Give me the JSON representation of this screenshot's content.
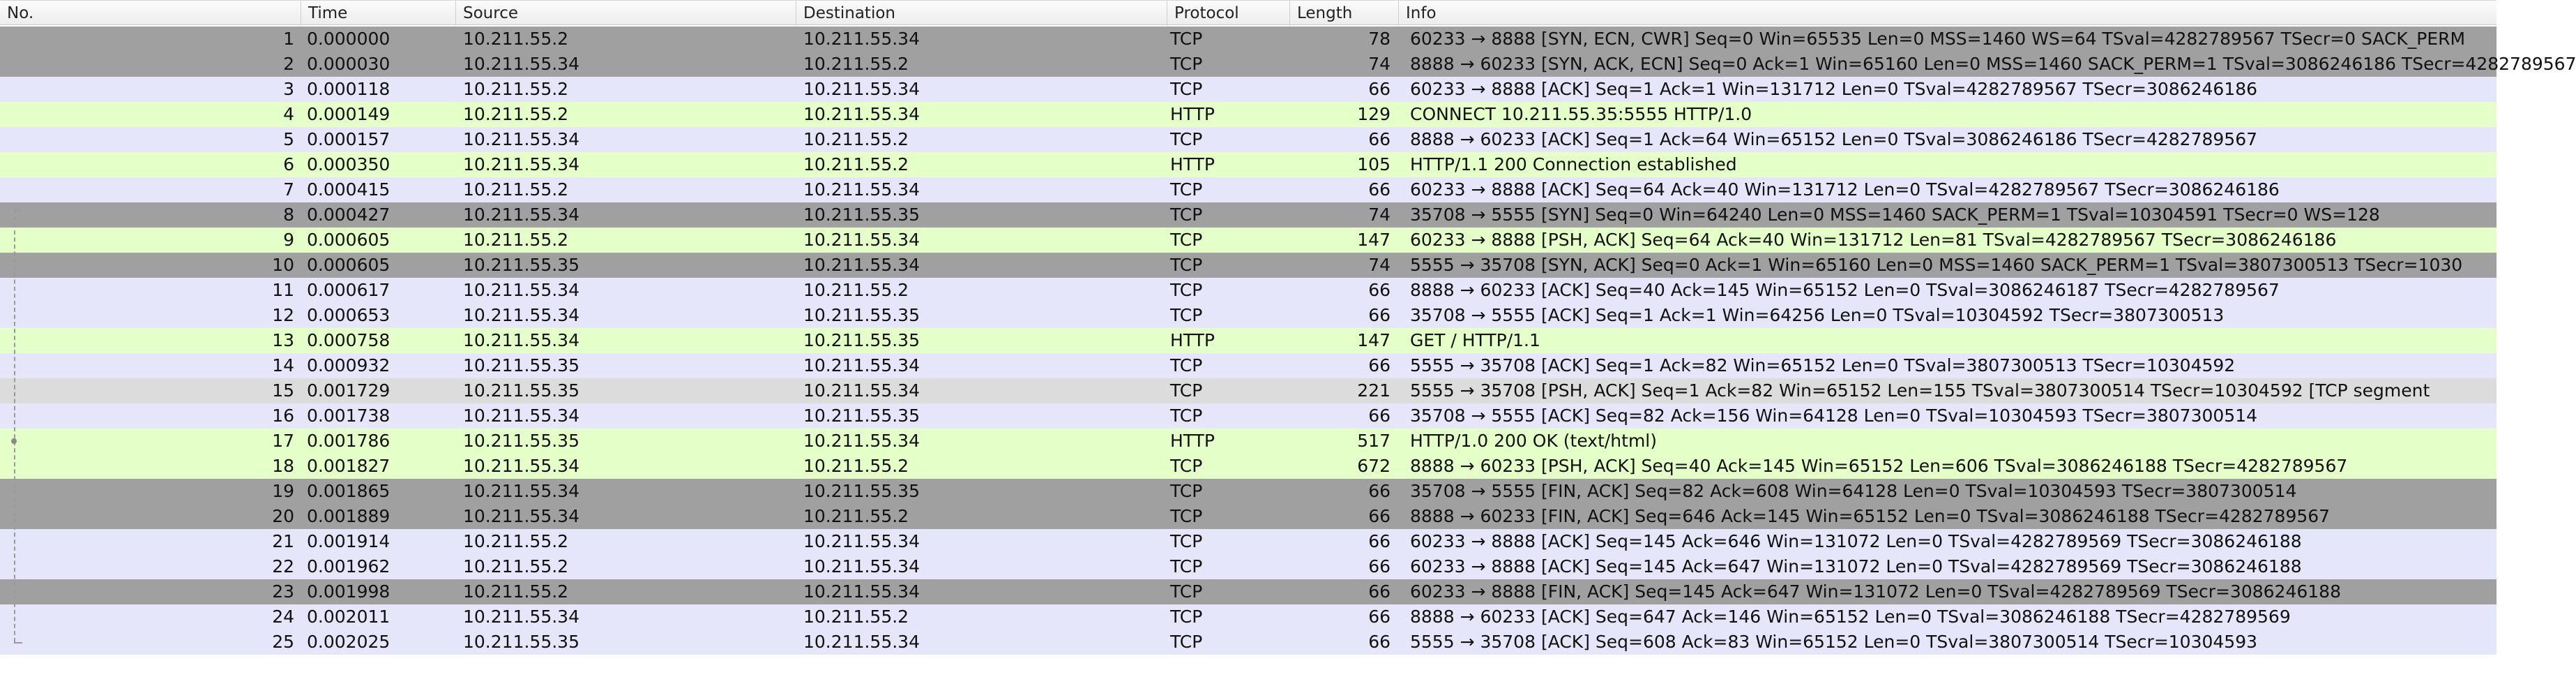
{
  "columns": {
    "no": "No.",
    "time": "Time",
    "source": "Source",
    "destination": "Destination",
    "protocol": "Protocol",
    "length": "Length",
    "info": "Info"
  },
  "colors": {
    "tcp_light": "#e6e6fa",
    "http_green": "#e4ffc7",
    "flag_gray": "#a0a0a0",
    "segment_gray": "#dcdcdc"
  },
  "packets": [
    {
      "no": "1",
      "time": "0.000000",
      "source": "10.211.55.2",
      "destination": "10.211.55.34",
      "protocol": "TCP",
      "length": "78",
      "info": "60233 → 8888 [SYN, ECN, CWR] Seq=0 Win=65535 Len=0 MSS=1460 WS=64 TSval=4282789567 TSecr=0 SACK_PERM",
      "style": "flag_gray"
    },
    {
      "no": "2",
      "time": "0.000030",
      "source": "10.211.55.34",
      "destination": "10.211.55.2",
      "protocol": "TCP",
      "length": "74",
      "info": "8888 → 60233 [SYN, ACK, ECN] Seq=0 Ack=1 Win=65160 Len=0 MSS=1460 SACK_PERM=1 TSval=3086246186 TSecr=4282789567",
      "style": "flag_gray"
    },
    {
      "no": "3",
      "time": "0.000118",
      "source": "10.211.55.2",
      "destination": "10.211.55.34",
      "protocol": "TCP",
      "length": "66",
      "info": "60233 → 8888 [ACK] Seq=1 Ack=1 Win=131712 Len=0 TSval=4282789567 TSecr=3086246186",
      "style": "tcp_light"
    },
    {
      "no": "4",
      "time": "0.000149",
      "source": "10.211.55.2",
      "destination": "10.211.55.34",
      "protocol": "HTTP",
      "length": "129",
      "info": "CONNECT 10.211.55.35:5555 HTTP/1.0",
      "style": "http_green"
    },
    {
      "no": "5",
      "time": "0.000157",
      "source": "10.211.55.34",
      "destination": "10.211.55.2",
      "protocol": "TCP",
      "length": "66",
      "info": "8888 → 60233 [ACK] Seq=1 Ack=64 Win=65152 Len=0 TSval=3086246186 TSecr=4282789567",
      "style": "tcp_light"
    },
    {
      "no": "6",
      "time": "0.000350",
      "source": "10.211.55.34",
      "destination": "10.211.55.2",
      "protocol": "HTTP",
      "length": "105",
      "info": "HTTP/1.1 200 Connection established",
      "style": "http_green"
    },
    {
      "no": "7",
      "time": "0.000415",
      "source": "10.211.55.2",
      "destination": "10.211.55.34",
      "protocol": "TCP",
      "length": "66",
      "info": "60233 → 8888 [ACK] Seq=64 Ack=40 Win=131712 Len=0 TSval=4282789567 TSecr=3086246186",
      "style": "tcp_light"
    },
    {
      "no": "8",
      "time": "0.000427",
      "source": "10.211.55.34",
      "destination": "10.211.55.35",
      "protocol": "TCP",
      "length": "74",
      "info": "35708 → 5555 [SYN] Seq=0 Win=64240 Len=0 MSS=1460 SACK_PERM=1 TSval=10304591 TSecr=0 WS=128",
      "style": "flag_gray"
    },
    {
      "no": "9",
      "time": "0.000605",
      "source": "10.211.55.2",
      "destination": "10.211.55.34",
      "protocol": "TCP",
      "length": "147",
      "info": "60233 → 8888 [PSH, ACK] Seq=64 Ack=40 Win=131712 Len=81 TSval=4282789567 TSecr=3086246186",
      "style": "http_green"
    },
    {
      "no": "10",
      "time": "0.000605",
      "source": "10.211.55.35",
      "destination": "10.211.55.34",
      "protocol": "TCP",
      "length": "74",
      "info": "5555 → 35708 [SYN, ACK] Seq=0 Ack=1 Win=65160 Len=0 MSS=1460 SACK_PERM=1 TSval=3807300513 TSecr=1030",
      "style": "flag_gray"
    },
    {
      "no": "11",
      "time": "0.000617",
      "source": "10.211.55.34",
      "destination": "10.211.55.2",
      "protocol": "TCP",
      "length": "66",
      "info": "8888 → 60233 [ACK] Seq=40 Ack=145 Win=65152 Len=0 TSval=3086246187 TSecr=4282789567",
      "style": "tcp_light"
    },
    {
      "no": "12",
      "time": "0.000653",
      "source": "10.211.55.34",
      "destination": "10.211.55.35",
      "protocol": "TCP",
      "length": "66",
      "info": "35708 → 5555 [ACK] Seq=1 Ack=1 Win=64256 Len=0 TSval=10304592 TSecr=3807300513",
      "style": "tcp_light"
    },
    {
      "no": "13",
      "time": "0.000758",
      "source": "10.211.55.34",
      "destination": "10.211.55.35",
      "protocol": "HTTP",
      "length": "147",
      "info": "GET / HTTP/1.1",
      "style": "http_green"
    },
    {
      "no": "14",
      "time": "0.000932",
      "source": "10.211.55.35",
      "destination": "10.211.55.34",
      "protocol": "TCP",
      "length": "66",
      "info": "5555 → 35708 [ACK] Seq=1 Ack=82 Win=65152 Len=0 TSval=3807300513 TSecr=10304592",
      "style": "tcp_light"
    },
    {
      "no": "15",
      "time": "0.001729",
      "source": "10.211.55.35",
      "destination": "10.211.55.34",
      "protocol": "TCP",
      "length": "221",
      "info": "5555 → 35708 [PSH, ACK] Seq=1 Ack=82 Win=65152 Len=155 TSval=3807300514 TSecr=10304592 [TCP segment",
      "style": "segment_gray"
    },
    {
      "no": "16",
      "time": "0.001738",
      "source": "10.211.55.34",
      "destination": "10.211.55.35",
      "protocol": "TCP",
      "length": "66",
      "info": "35708 → 5555 [ACK] Seq=82 Ack=156 Win=64128 Len=0 TSval=10304593 TSecr=3807300514",
      "style": "tcp_light"
    },
    {
      "no": "17",
      "time": "0.001786",
      "source": "10.211.55.35",
      "destination": "10.211.55.34",
      "protocol": "HTTP",
      "length": "517",
      "info": "HTTP/1.0 200 OK  (text/html)",
      "style": "http_green"
    },
    {
      "no": "18",
      "time": "0.001827",
      "source": "10.211.55.34",
      "destination": "10.211.55.2",
      "protocol": "TCP",
      "length": "672",
      "info": "8888 → 60233 [PSH, ACK] Seq=40 Ack=145 Win=65152 Len=606 TSval=3086246188 TSecr=4282789567",
      "style": "http_green"
    },
    {
      "no": "19",
      "time": "0.001865",
      "source": "10.211.55.34",
      "destination": "10.211.55.35",
      "protocol": "TCP",
      "length": "66",
      "info": "35708 → 5555 [FIN, ACK] Seq=82 Ack=608 Win=64128 Len=0 TSval=10304593 TSecr=3807300514",
      "style": "flag_gray"
    },
    {
      "no": "20",
      "time": "0.001889",
      "source": "10.211.55.34",
      "destination": "10.211.55.2",
      "protocol": "TCP",
      "length": "66",
      "info": "8888 → 60233 [FIN, ACK] Seq=646 Ack=145 Win=65152 Len=0 TSval=3086246188 TSecr=4282789567",
      "style": "flag_gray"
    },
    {
      "no": "21",
      "time": "0.001914",
      "source": "10.211.55.2",
      "destination": "10.211.55.34",
      "protocol": "TCP",
      "length": "66",
      "info": "60233 → 8888 [ACK] Seq=145 Ack=646 Win=131072 Len=0 TSval=4282789569 TSecr=3086246188",
      "style": "tcp_light"
    },
    {
      "no": "22",
      "time": "0.001962",
      "source": "10.211.55.2",
      "destination": "10.211.55.34",
      "protocol": "TCP",
      "length": "66",
      "info": "60233 → 8888 [ACK] Seq=145 Ack=647 Win=131072 Len=0 TSval=4282789569 TSecr=3086246188",
      "style": "tcp_light"
    },
    {
      "no": "23",
      "time": "0.001998",
      "source": "10.211.55.2",
      "destination": "10.211.55.34",
      "protocol": "TCP",
      "length": "66",
      "info": "60233 → 8888 [FIN, ACK] Seq=145 Ack=647 Win=131072 Len=0 TSval=4282789569 TSecr=3086246188",
      "style": "flag_gray"
    },
    {
      "no": "24",
      "time": "0.002011",
      "source": "10.211.55.34",
      "destination": "10.211.55.2",
      "protocol": "TCP",
      "length": "66",
      "info": "8888 → 60233 [ACK] Seq=647 Ack=146 Win=65152 Len=0 TSval=3086246188 TSecr=4282789569",
      "style": "tcp_light"
    },
    {
      "no": "25",
      "time": "0.002025",
      "source": "10.211.55.35",
      "destination": "10.211.55.34",
      "protocol": "TCP",
      "length": "66",
      "info": "5555 → 35708 [ACK] Seq=608 Ack=83 Win=65152 Len=0 TSval=3807300514 TSecr=10304593",
      "style": "tcp_light"
    }
  ]
}
